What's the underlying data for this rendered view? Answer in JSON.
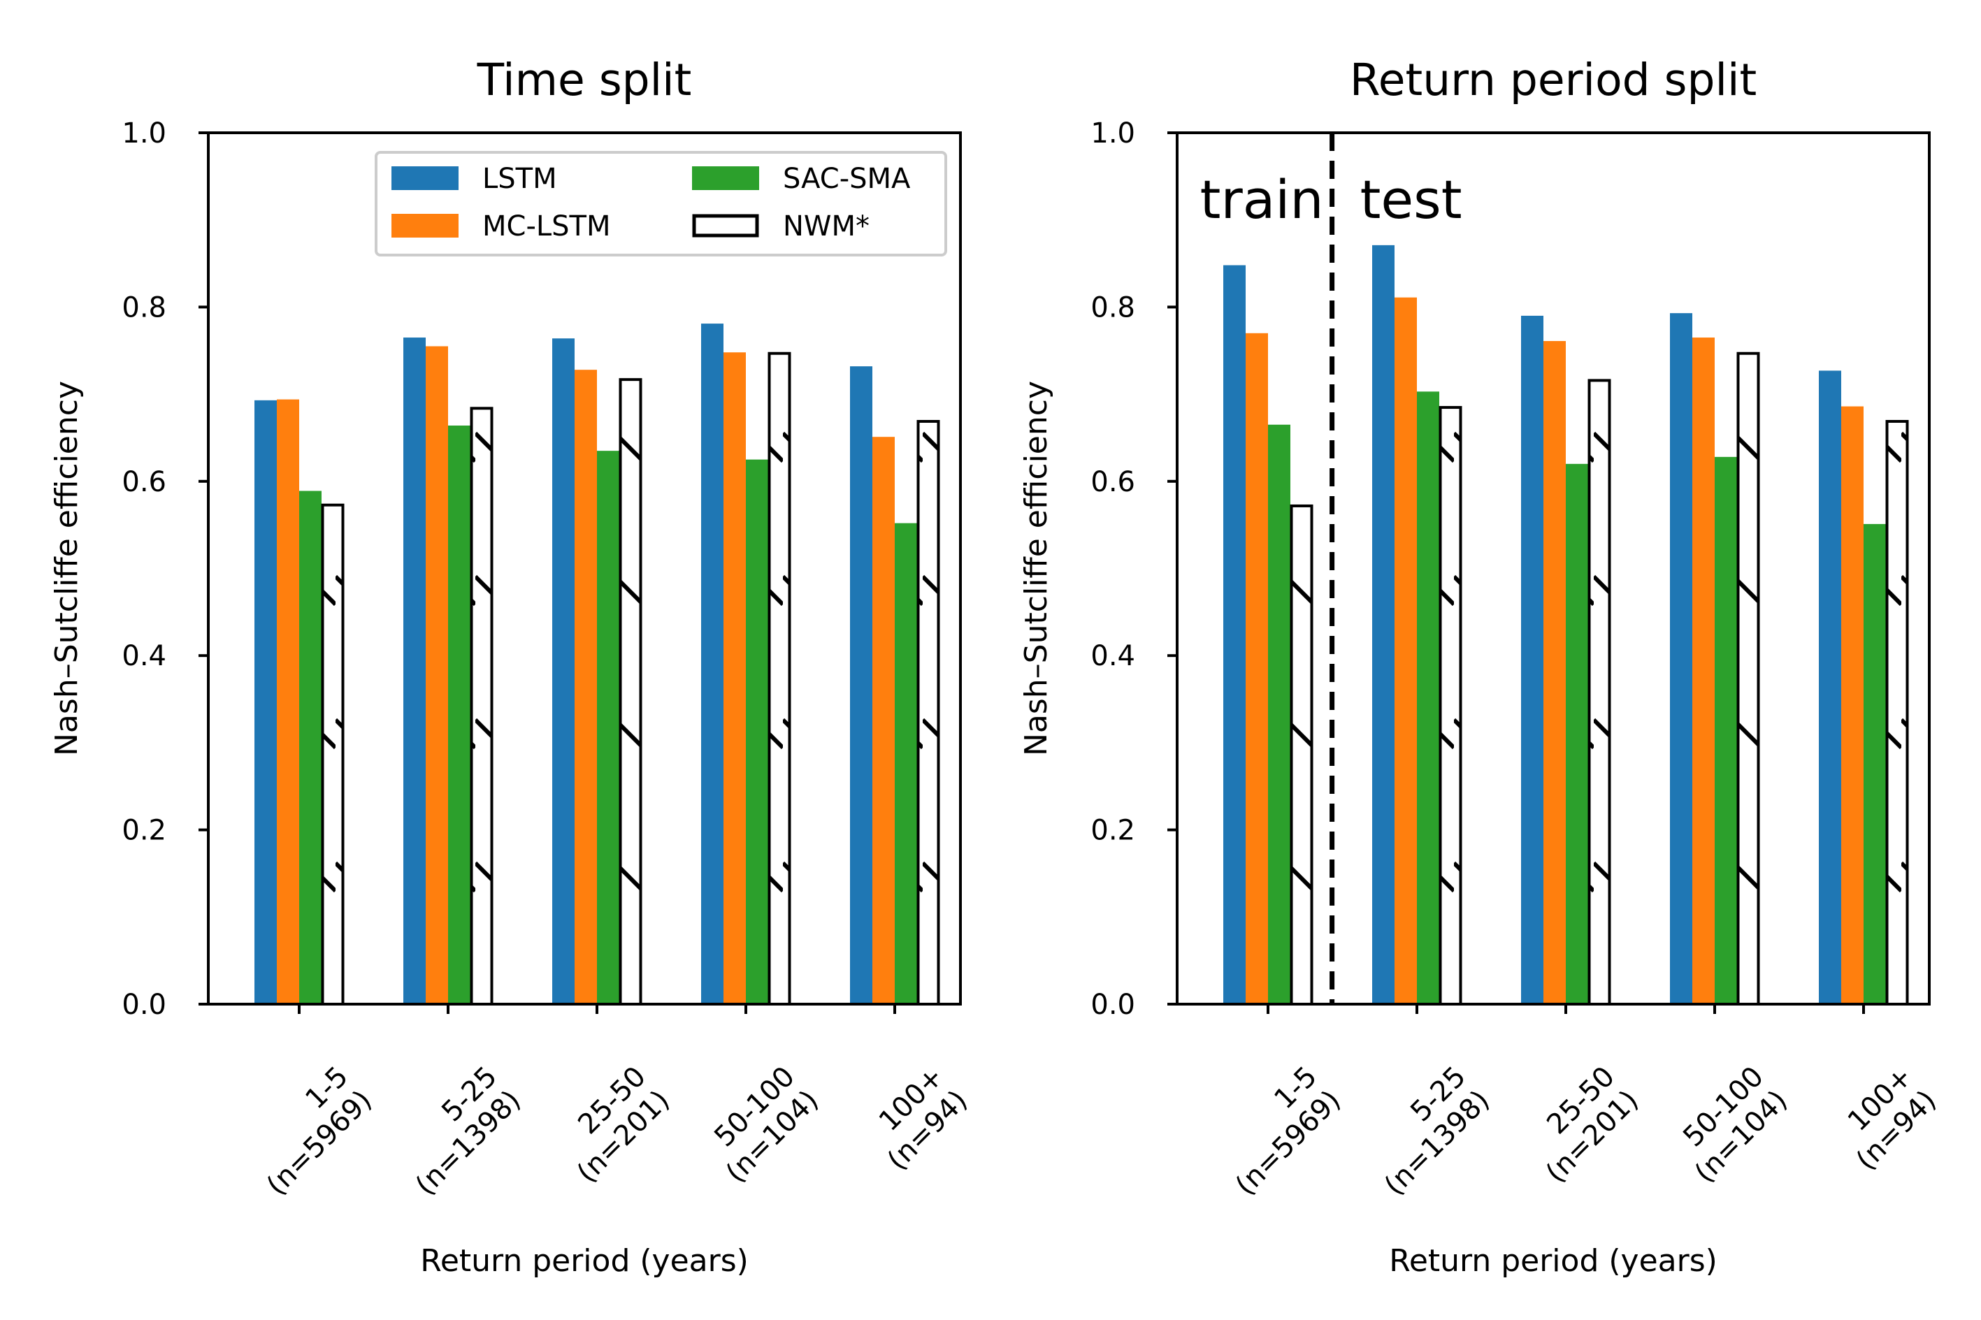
{
  "chart_data": [
    {
      "type": "bar",
      "title": "Time split",
      "xlabel": "Return period (years)",
      "ylabel": "Nash–Sutcliffe efficiency",
      "ylim": [
        0,
        1.0
      ],
      "yticks": [
        "0.0",
        "0.2",
        "0.4",
        "0.6",
        "0.8",
        "1.0"
      ],
      "categories": [
        [
          "1-5",
          "(n=5969)"
        ],
        [
          "5-25",
          "(n=1398)"
        ],
        [
          "25-50",
          "(n=201)"
        ],
        [
          "50-100",
          "(n=104)"
        ],
        [
          "100+",
          "(n=94)"
        ]
      ],
      "series": [
        {
          "name": "LSTM",
          "color": "#1f77b4",
          "style": "solid",
          "values": [
            0.693,
            0.765,
            0.764,
            0.781,
            0.732
          ]
        },
        {
          "name": "MC-LSTM",
          "color": "#ff7f0e",
          "style": "solid",
          "values": [
            0.694,
            0.755,
            0.728,
            0.748,
            0.651
          ]
        },
        {
          "name": "SAC-SMA",
          "color": "#2ca02c",
          "style": "solid",
          "values": [
            0.589,
            0.664,
            0.635,
            0.625,
            0.552
          ]
        },
        {
          "name": "NWM*",
          "color": "#ffffff",
          "style": "hatched",
          "values": [
            0.574,
            0.685,
            0.718,
            0.748,
            0.67
          ]
        }
      ],
      "legend": {
        "placement": "top-right",
        "columns": 2
      }
    },
    {
      "type": "bar",
      "title": "Return period split",
      "xlabel": "Return period (years)",
      "ylabel": "Nash–Sutcliffe efficiency",
      "ylim": [
        0,
        1.0
      ],
      "yticks": [
        "0.0",
        "0.2",
        "0.4",
        "0.6",
        "0.8",
        "1.0"
      ],
      "categories": [
        [
          "1-5",
          "(n=5969)"
        ],
        [
          "5-25",
          "(n=1398)"
        ],
        [
          "25-50",
          "(n=201)"
        ],
        [
          "50-100",
          "(n=104)"
        ],
        [
          "100+",
          "(n=94)"
        ]
      ],
      "series": [
        {
          "name": "LSTM",
          "color": "#1f77b4",
          "style": "solid",
          "values": [
            0.848,
            0.871,
            0.79,
            0.793,
            0.727
          ]
        },
        {
          "name": "MC-LSTM",
          "color": "#ff7f0e",
          "style": "solid",
          "values": [
            0.77,
            0.811,
            0.761,
            0.765,
            0.686
          ]
        },
        {
          "name": "SAC-SMA",
          "color": "#2ca02c",
          "style": "solid",
          "values": [
            0.665,
            0.703,
            0.62,
            0.628,
            0.551
          ]
        },
        {
          "name": "NWM*",
          "color": "#ffffff",
          "style": "hatched",
          "values": [
            0.573,
            0.686,
            0.717,
            0.748,
            0.67
          ]
        }
      ],
      "annotations": [
        {
          "text": "train",
          "side": "left"
        },
        {
          "text": "test",
          "side": "right"
        }
      ],
      "divider": {
        "style": "dashed",
        "after_category": 0
      }
    }
  ]
}
